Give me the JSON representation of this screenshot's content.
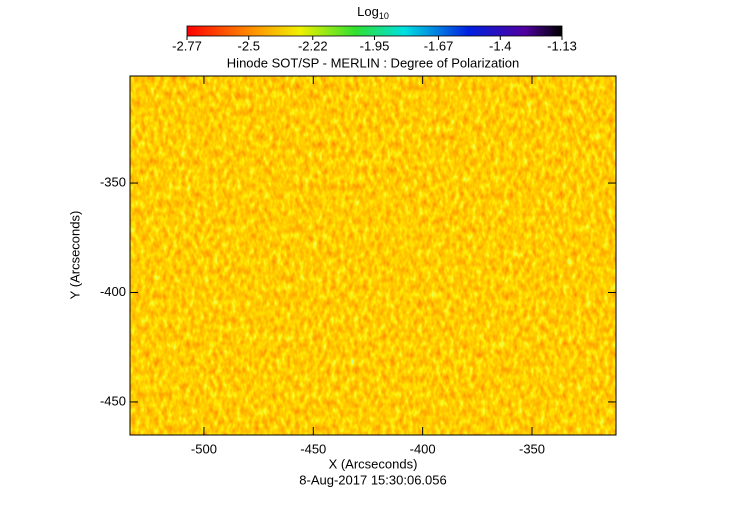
{
  "chart_data": {
    "type": "heatmap",
    "title": "Hinode SOT/SP - MERLIN : Degree of Polarization",
    "colorbar_label": "Log",
    "colorbar_label_sub": "10",
    "colorbar_lim": [
      -2.77,
      -1.13
    ],
    "colorbar_ticks": [
      -2.77,
      -2.5,
      -2.22,
      -1.95,
      -1.67,
      -1.4,
      -1.13
    ],
    "x_label": "X (Arcseconds)",
    "y_label": "Y (Arcseconds)",
    "xlim": [
      -533.8,
      -311.6
    ],
    "xticks": [
      -500,
      -450,
      -400,
      -350
    ],
    "ylim": [
      -465.1,
      -301.1
    ],
    "yticks": [
      -450,
      -400,
      -350
    ],
    "footer": "8-Aug-2017 15:30:06.056"
  }
}
